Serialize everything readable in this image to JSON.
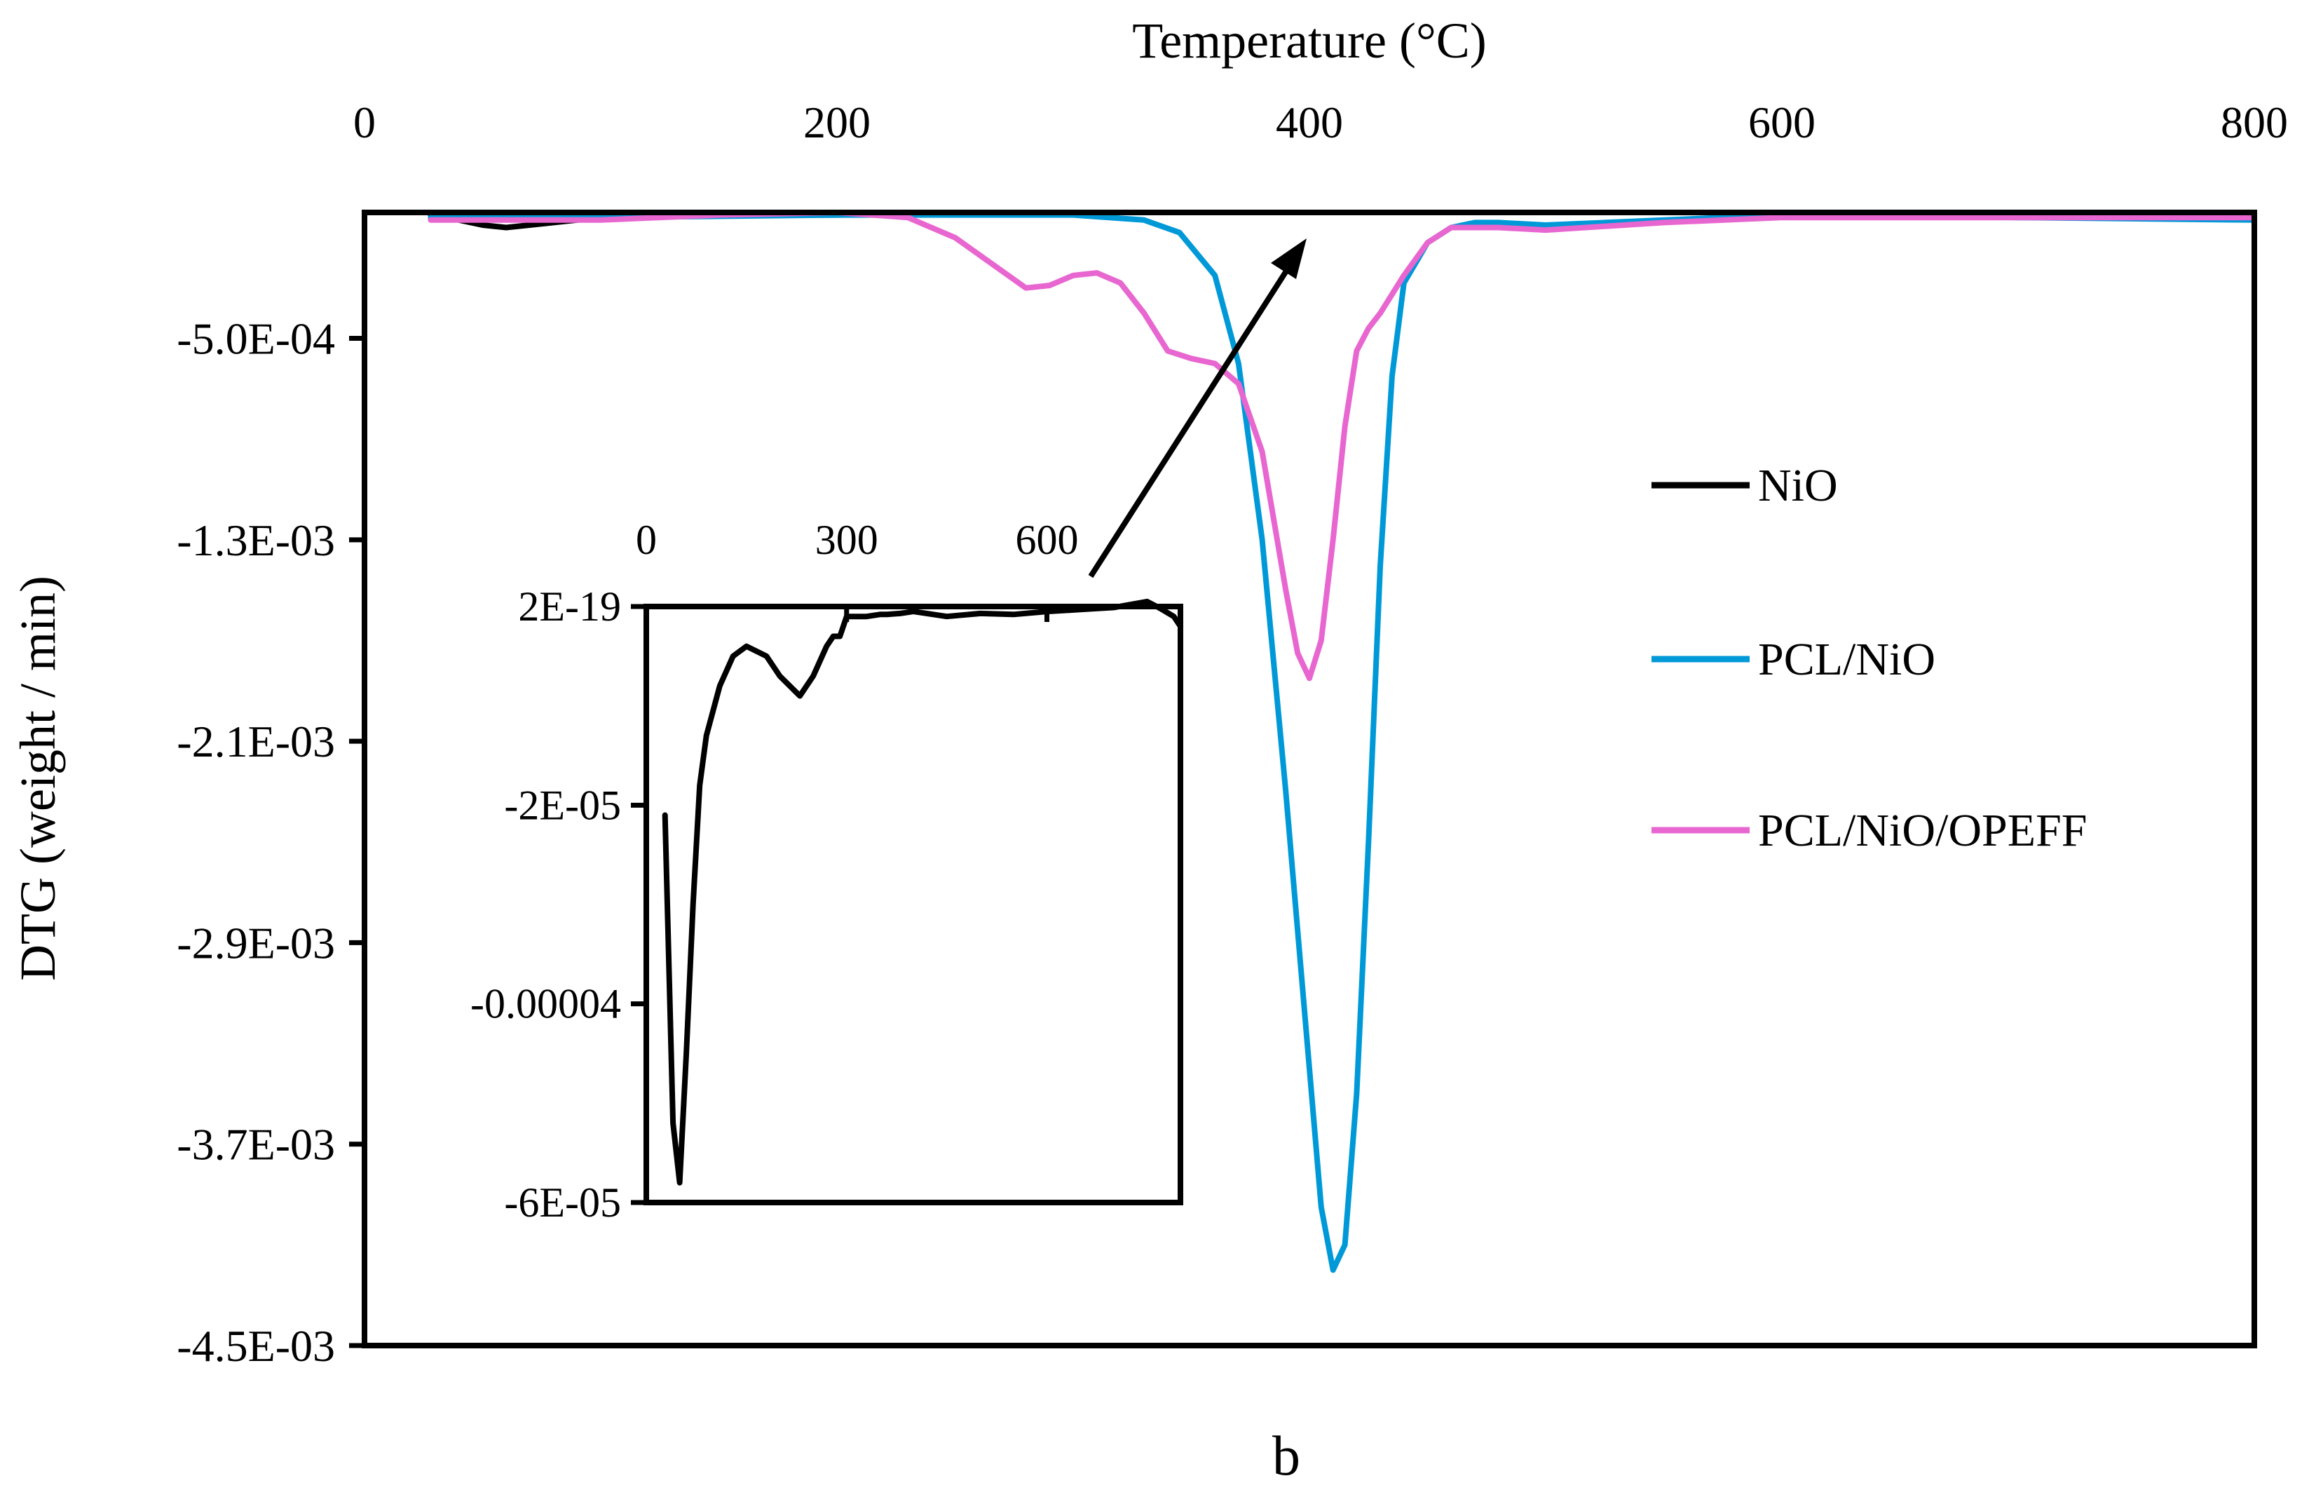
{
  "chart_data": [
    {
      "type": "line",
      "title": "",
      "xlabel": "Temperature (°C)",
      "ylabel": "DTG (weight / min)",
      "xlim": [
        0,
        800
      ],
      "ylim": [
        -0.0045,
        0.0
      ],
      "x_ticks": [
        0,
        200,
        400,
        600,
        800
      ],
      "x_tick_labels": [
        "0",
        "200",
        "400",
        "600",
        "800"
      ],
      "y_ticks": [
        -0.0005,
        -0.0013,
        -0.0021,
        -0.0029,
        -0.0037,
        -0.0045
      ],
      "y_tick_labels": [
        "-5.0E-04",
        "-1.3E-03",
        "-2.1E-03",
        "-2.9E-03",
        "-3.7E-03",
        "-4.5E-03"
      ],
      "legend_position": "right",
      "grid": false,
      "panel_label": "b",
      "series": [
        {
          "name": "NiO",
          "color": "#000000",
          "x": [
            28,
            40,
            50,
            60,
            80,
            100,
            150,
            200,
            300,
            400,
            500,
            600,
            700,
            800
          ],
          "y": [
            -1e-05,
            -3e-05,
            -5e-05,
            -6e-05,
            -4e-05,
            -2e-05,
            -1e-05,
            -1e-05,
            0.0,
            0.0,
            0.0,
            0.0,
            0.0,
            -1e-05
          ]
        },
        {
          "name": "PCL/NiO",
          "color": "#0099d8",
          "x": [
            28,
            100,
            200,
            300,
            330,
            345,
            360,
            370,
            380,
            390,
            400,
            405,
            410,
            415,
            420,
            425,
            430,
            435,
            440,
            450,
            460,
            470,
            480,
            500,
            600,
            700,
            800
          ],
          "y": [
            -2e-05,
            -2e-05,
            -1e-05,
            -1e-05,
            -3e-05,
            -8e-05,
            -0.00025,
            -0.0006,
            -0.0013,
            -0.0023,
            -0.0034,
            -0.00395,
            -0.0042,
            -0.0041,
            -0.0035,
            -0.0025,
            -0.0014,
            -0.00065,
            -0.00028,
            -0.00012,
            -6e-05,
            -4e-05,
            -4e-05,
            -5e-05,
            -1e-05,
            -2e-05,
            -3e-05
          ]
        },
        {
          "name": "PCL/NiO/OPEFF",
          "color": "#e866d0",
          "x": [
            28,
            100,
            150,
            200,
            230,
            250,
            265,
            280,
            290,
            300,
            310,
            320,
            330,
            340,
            350,
            360,
            370,
            380,
            390,
            395,
            400,
            405,
            410,
            415,
            420,
            425,
            430,
            440,
            450,
            460,
            480,
            500,
            550,
            600,
            700,
            800
          ],
          "y": [
            -3e-05,
            -3e-05,
            -1e-05,
            0.0,
            -2e-05,
            -0.0001,
            -0.0002,
            -0.0003,
            -0.00029,
            -0.00025,
            -0.00024,
            -0.00028,
            -0.0004,
            -0.00055,
            -0.00058,
            -0.0006,
            -0.00068,
            -0.00095,
            -0.0015,
            -0.00175,
            -0.00185,
            -0.0017,
            -0.0013,
            -0.00085,
            -0.00055,
            -0.00046,
            -0.0004,
            -0.00025,
            -0.00012,
            -6e-05,
            -6e-05,
            -7e-05,
            -4e-05,
            -2e-05,
            -2e-05,
            -2e-05
          ]
        }
      ]
    },
    {
      "type": "line",
      "title": "",
      "xlabel": "",
      "ylabel": "",
      "xlim": [
        0,
        800
      ],
      "ylim": [
        -6e-05,
        0.0
      ],
      "x_ticks": [
        0,
        300,
        600
      ],
      "x_tick_labels": [
        "0",
        "300",
        "600"
      ],
      "y_ticks": [
        0.0,
        -2e-05,
        -4e-05,
        -6e-05
      ],
      "y_tick_labels": [
        "2E-19",
        "-2E-05",
        "-0.00004",
        "-6E-05"
      ],
      "legend_position": "none",
      "grid": false,
      "series": [
        {
          "name": "NiO",
          "color": "#000000",
          "x": [
            28,
            40,
            50,
            60,
            70,
            80,
            90,
            110,
            130,
            150,
            180,
            200,
            230,
            250,
            270,
            280,
            290,
            300,
            310,
            330,
            350,
            360,
            380,
            400,
            450,
            500,
            550,
            600,
            650,
            700,
            750,
            770,
            790,
            800
          ],
          "y": [
            -2.1e-05,
            -5.2e-05,
            -5.8e-05,
            -4.5e-05,
            -3e-05,
            -1.8e-05,
            -1.3e-05,
            -8e-06,
            -5e-06,
            -4e-06,
            -5e-06,
            -7e-06,
            -9e-06,
            -7e-06,
            -4e-06,
            -3e-06,
            -3e-06,
            -1e-06,
            -1e-06,
            -1e-06,
            -8e-07,
            -8e-07,
            -7e-07,
            -5e-07,
            -1e-06,
            -7e-07,
            -8e-07,
            -5e-07,
            -3e-07,
            -1e-07,
            5e-07,
            -2e-07,
            -1e-06,
            -2e-06
          ]
        }
      ]
    }
  ]
}
